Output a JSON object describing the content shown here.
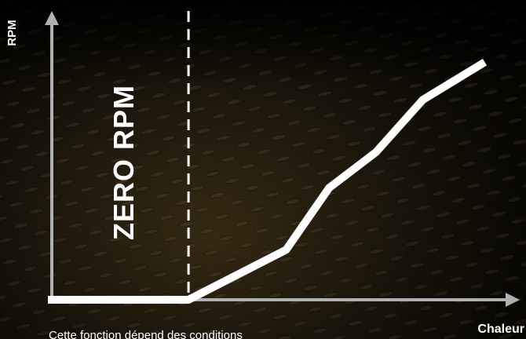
{
  "chart_data": {
    "type": "line",
    "xlabel": "Chaleur",
    "ylabel": "RPM",
    "annotation": "ZERO RPM",
    "threshold_x": 0.35,
    "x": [
      0,
      0.35,
      0.6,
      0.71,
      0.83,
      0.95,
      1.1
    ],
    "y": [
      0,
      0,
      0.21,
      0.47,
      0.62,
      0.84,
      0.99
    ],
    "xlim": [
      0,
      1.19
    ],
    "ylim": [
      0,
      1.2
    ],
    "grid": false,
    "line_color": "#ffffff",
    "axis_color": "#b0b0b0"
  },
  "footnote": "Cette fonction dépend des conditions"
}
